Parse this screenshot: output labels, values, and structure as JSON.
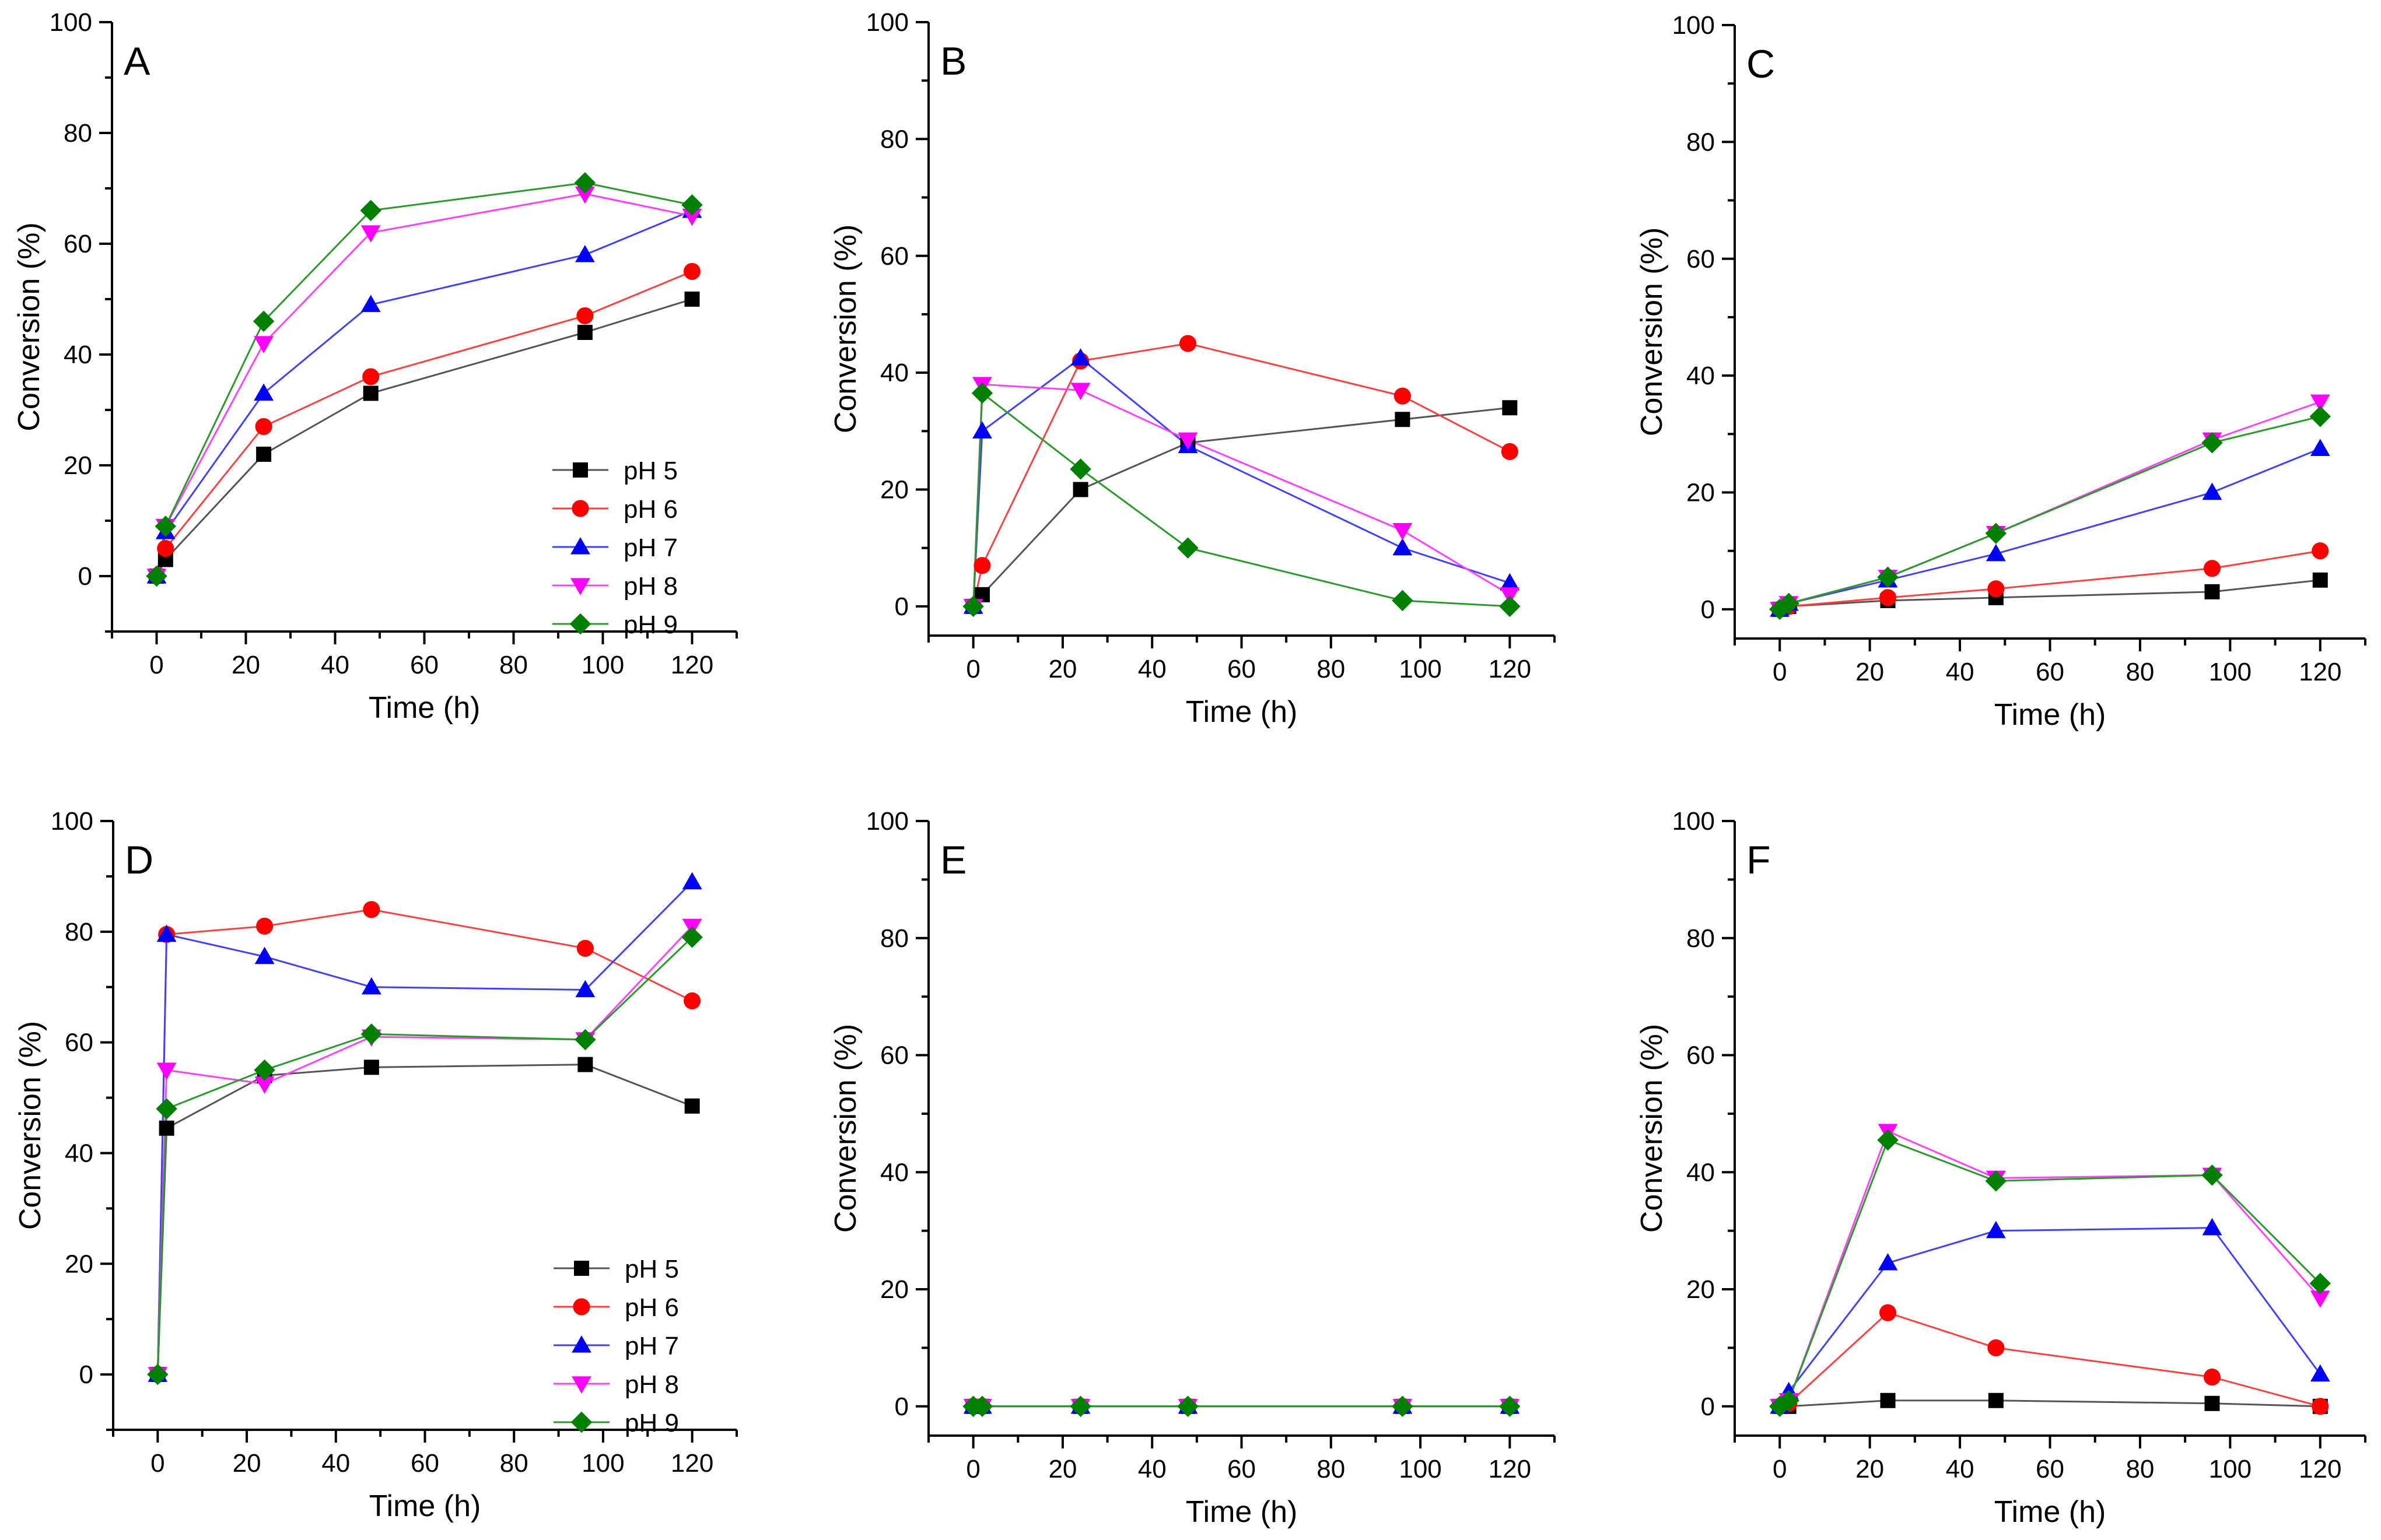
{
  "chart_data": [
    {
      "type": "line",
      "panel": "A",
      "xlabel": "Time (h)",
      "ylabel": "Conversion (%)",
      "xlim": [
        -10,
        130
      ],
      "ylim": [
        -10,
        100
      ],
      "xticks": [
        0,
        20,
        40,
        60,
        80,
        100,
        120
      ],
      "yticks": [
        0,
        20,
        40,
        60,
        80,
        100
      ],
      "legend": true,
      "legend_position": "bottom-right",
      "x": [
        0,
        2,
        24,
        48,
        96,
        120
      ],
      "series": [
        {
          "name": "pH 5",
          "values": [
            0,
            3,
            22,
            33,
            44,
            50
          ]
        },
        {
          "name": "pH 6",
          "values": [
            0,
            5,
            27,
            36,
            47,
            55
          ]
        },
        {
          "name": "pH 7",
          "values": [
            0,
            8,
            33,
            49,
            58,
            66
          ]
        },
        {
          "name": "pH 8",
          "values": [
            0,
            9,
            42,
            62,
            69,
            65
          ]
        },
        {
          "name": "pH 9",
          "values": [
            0,
            9,
            46,
            66,
            71,
            67
          ]
        }
      ]
    },
    {
      "type": "line",
      "panel": "B",
      "xlabel": "Time (h)",
      "ylabel": "Conversion (%)",
      "xlim": [
        -10,
        130
      ],
      "ylim": [
        -5,
        100
      ],
      "xticks": [
        0,
        20,
        40,
        60,
        80,
        100,
        120
      ],
      "yticks": [
        0,
        20,
        40,
        60,
        80,
        100
      ],
      "legend": false,
      "x": [
        0,
        2,
        24,
        48,
        96,
        120
      ],
      "series": [
        {
          "name": "pH 5",
          "values": [
            0,
            2,
            20,
            28,
            32,
            34
          ]
        },
        {
          "name": "pH 6",
          "values": [
            0,
            7,
            42,
            45,
            36,
            26.5
          ]
        },
        {
          "name": "pH 7",
          "values": [
            0,
            30,
            42.5,
            27.5,
            10,
            4
          ]
        },
        {
          "name": "pH 8",
          "values": [
            0,
            38,
            37,
            28.5,
            13,
            2
          ]
        },
        {
          "name": "pH 9",
          "values": [
            0,
            36.5,
            23.5,
            10,
            1,
            0
          ]
        }
      ]
    },
    {
      "type": "line",
      "panel": "C",
      "xlabel": "Time (h)",
      "ylabel": "Conversion (%)",
      "xlim": [
        -10,
        130
      ],
      "ylim": [
        -5,
        100
      ],
      "xticks": [
        0,
        20,
        40,
        60,
        80,
        100,
        120
      ],
      "yticks": [
        0,
        20,
        40,
        60,
        80,
        100
      ],
      "legend": false,
      "x": [
        0,
        2,
        24,
        48,
        96,
        120
      ],
      "series": [
        {
          "name": "pH 5",
          "values": [
            0,
            0.5,
            1.5,
            2,
            3,
            5
          ]
        },
        {
          "name": "pH 6",
          "values": [
            0,
            0.5,
            2,
            3.5,
            7,
            10
          ]
        },
        {
          "name": "pH 7",
          "values": [
            0,
            1,
            5,
            9.5,
            20,
            27.5
          ]
        },
        {
          "name": "pH 8",
          "values": [
            0,
            1,
            5.5,
            13,
            29,
            35.5
          ]
        },
        {
          "name": "pH 9",
          "values": [
            0,
            1,
            5.5,
            13,
            28.5,
            33
          ]
        }
      ]
    },
    {
      "type": "line",
      "panel": "D",
      "xlabel": "Time (h)",
      "ylabel": "Conversion (%)",
      "xlim": [
        -10,
        130
      ],
      "ylim": [
        -10,
        100
      ],
      "xticks": [
        0,
        20,
        40,
        60,
        80,
        100,
        120
      ],
      "yticks": [
        0,
        20,
        40,
        60,
        80,
        100
      ],
      "legend": true,
      "legend_position": "bottom-right",
      "x": [
        0,
        2,
        24,
        48,
        96,
        120
      ],
      "series": [
        {
          "name": "pH 5",
          "values": [
            0,
            44.5,
            54,
            55.5,
            56,
            48.5
          ]
        },
        {
          "name": "pH 6",
          "values": [
            0,
            79.5,
            81,
            84,
            77,
            67.5
          ]
        },
        {
          "name": "pH 7",
          "values": [
            0,
            79.5,
            75.5,
            70,
            69.5,
            89
          ]
        },
        {
          "name": "pH 8",
          "values": [
            0,
            55,
            52.5,
            61,
            60.5,
            81
          ]
        },
        {
          "name": "pH 9",
          "values": [
            0,
            48,
            55,
            61.5,
            60.5,
            79
          ]
        }
      ]
    },
    {
      "type": "line",
      "panel": "E",
      "xlabel": "Time (h)",
      "ylabel": "Conversion (%)",
      "xlim": [
        -10,
        130
      ],
      "ylim": [
        -5,
        100
      ],
      "xticks": [
        0,
        20,
        40,
        60,
        80,
        100,
        120
      ],
      "yticks": [
        0,
        20,
        40,
        60,
        80,
        100
      ],
      "legend": false,
      "x": [
        0,
        2,
        24,
        48,
        96,
        120
      ],
      "series": [
        {
          "name": "pH 5",
          "values": [
            0,
            0,
            0,
            0,
            0,
            0
          ]
        },
        {
          "name": "pH 6",
          "values": [
            0,
            0,
            0,
            0,
            0,
            0
          ]
        },
        {
          "name": "pH 7",
          "values": [
            0,
            0,
            0,
            0,
            0,
            0
          ]
        },
        {
          "name": "pH 8",
          "values": [
            0,
            0,
            0,
            0,
            0,
            0
          ]
        },
        {
          "name": "pH 9",
          "values": [
            0,
            0,
            0,
            0,
            0,
            0
          ]
        }
      ]
    },
    {
      "type": "line",
      "panel": "F",
      "xlabel": "Time (h)",
      "ylabel": "Conversion (%)",
      "xlim": [
        -10,
        130
      ],
      "ylim": [
        -5,
        100
      ],
      "xticks": [
        0,
        20,
        40,
        60,
        80,
        100,
        120
      ],
      "yticks": [
        0,
        20,
        40,
        60,
        80,
        100
      ],
      "legend": false,
      "x": [
        0,
        2,
        24,
        48,
        96,
        120
      ],
      "series": [
        {
          "name": "pH 5",
          "values": [
            0,
            0,
            1,
            1,
            0.5,
            0
          ]
        },
        {
          "name": "pH 6",
          "values": [
            0,
            0.5,
            16,
            10,
            5,
            0
          ]
        },
        {
          "name": "pH 7",
          "values": [
            0,
            2.5,
            24.5,
            30,
            30.5,
            5.5
          ]
        },
        {
          "name": "pH 8",
          "values": [
            0,
            1,
            47,
            39,
            39.5,
            18.5
          ]
        },
        {
          "name": "pH 9",
          "values": [
            0,
            1,
            45.5,
            38.5,
            39.5,
            21
          ]
        }
      ]
    }
  ],
  "series_style": [
    {
      "name": "pH 5",
      "color": "#000000",
      "line_color": "#555555",
      "marker": "square"
    },
    {
      "name": "pH 6",
      "color": "#ff0000",
      "line_color": "#ff4040",
      "marker": "circle"
    },
    {
      "name": "pH 7",
      "color": "#0000ff",
      "line_color": "#4040ff",
      "marker": "triangle-up"
    },
    {
      "name": "pH 8",
      "color": "#ff00ff",
      "line_color": "#ff40ff",
      "marker": "triangle-down"
    },
    {
      "name": "pH 9",
      "color": "#008000",
      "line_color": "#2a9a2a",
      "marker": "diamond"
    }
  ]
}
